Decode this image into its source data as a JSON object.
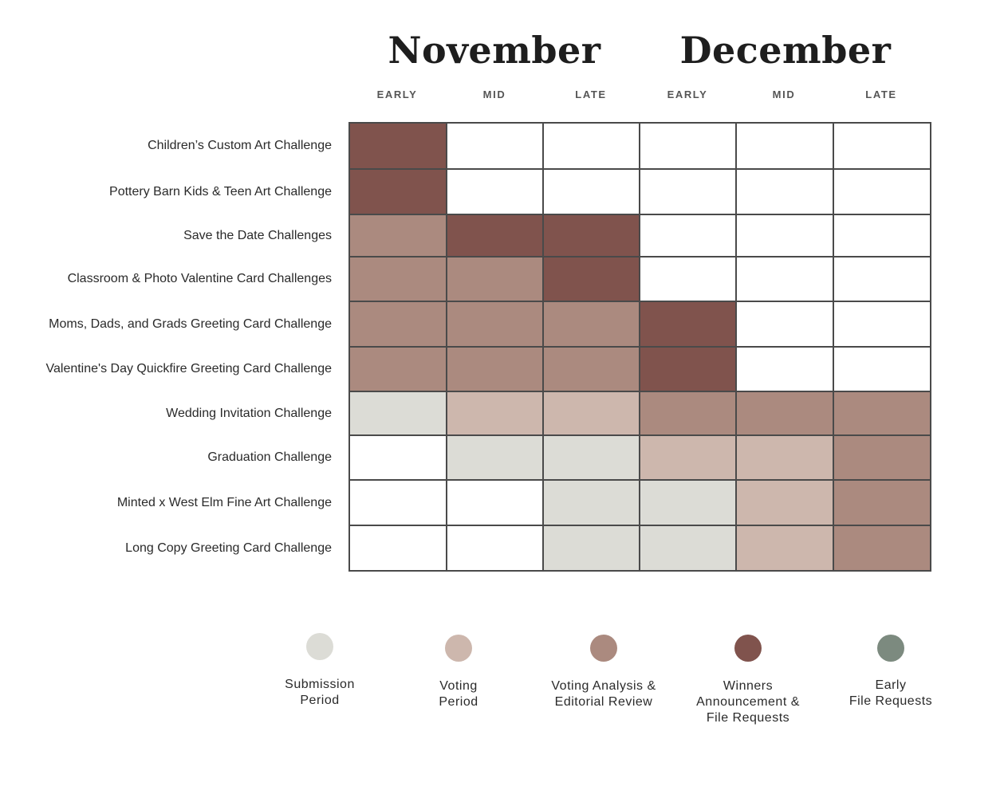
{
  "chart_data": {
    "type": "heatmap",
    "months": [
      "November",
      "December"
    ],
    "columns": [
      "EARLY",
      "MID",
      "LATE",
      "EARLY",
      "MID",
      "LATE"
    ],
    "rows": [
      {
        "label": "Children’s Custom Art Challenge",
        "cells": [
          "winners",
          "none",
          "none",
          "none",
          "none",
          "none"
        ]
      },
      {
        "label": "Pottery Barn Kids & Teen Art Challenge",
        "cells": [
          "winners",
          "none",
          "none",
          "none",
          "none",
          "none"
        ]
      },
      {
        "label": "Save the Date Challenges",
        "cells": [
          "analysis",
          "winners",
          "winners",
          "none",
          "none",
          "none"
        ]
      },
      {
        "label": "Classroom & Photo Valentine Card Challenges",
        "cells": [
          "analysis",
          "analysis",
          "winners",
          "none",
          "none",
          "none"
        ]
      },
      {
        "label": "Moms, Dads, and Grads Greeting Card Challenge",
        "cells": [
          "analysis",
          "analysis",
          "analysis",
          "winners",
          "none",
          "none"
        ]
      },
      {
        "label": "Valentine's Day Quickfire Greeting Card Challenge",
        "cells": [
          "analysis",
          "analysis",
          "analysis",
          "winners",
          "none",
          "none"
        ]
      },
      {
        "label": "Wedding Invitation Challenge",
        "cells": [
          "submission",
          "voting",
          "voting",
          "analysis",
          "analysis",
          "analysis"
        ]
      },
      {
        "label": "Graduation Challenge",
        "cells": [
          "none",
          "submission",
          "submission",
          "voting",
          "voting",
          "analysis"
        ]
      },
      {
        "label": "Minted x West Elm Fine Art Challenge",
        "cells": [
          "none",
          "none",
          "submission",
          "submission",
          "voting",
          "analysis"
        ]
      },
      {
        "label": "Long Copy Greeting Card Challenge",
        "cells": [
          "none",
          "none",
          "submission",
          "submission",
          "voting",
          "analysis"
        ]
      }
    ],
    "legend": [
      {
        "key": "submission",
        "lines": [
          "Submission",
          "Period"
        ],
        "color": "#dcdcd6"
      },
      {
        "key": "voting",
        "lines": [
          "Voting",
          "Period"
        ],
        "color": "#cdb7ad"
      },
      {
        "key": "analysis",
        "lines": [
          "Voting Analysis &",
          "Editorial Review"
        ],
        "color": "#ab8a7f"
      },
      {
        "key": "winners",
        "lines": [
          "Winners",
          "Announcement &",
          "File Requests"
        ],
        "color": "#80534d"
      },
      {
        "key": "early",
        "lines": [
          "Early",
          "File Requests"
        ],
        "color": "#7c8a7f"
      }
    ],
    "colors": {
      "none": "#ffffff",
      "grid_line": "#4a4a4a"
    }
  }
}
